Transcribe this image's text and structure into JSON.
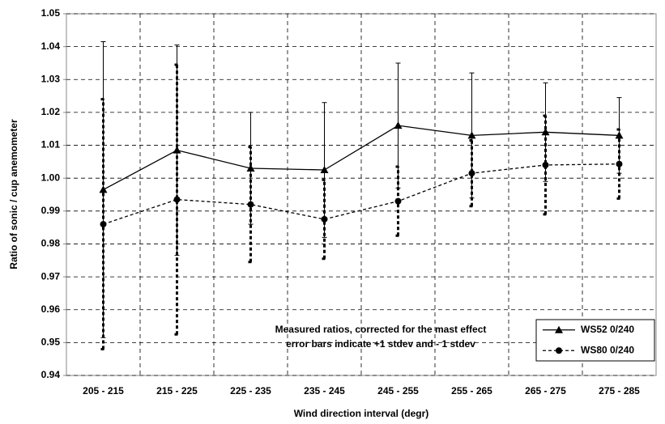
{
  "chart_data": {
    "type": "line",
    "y_label": "Ratio of sonic / cup anemometer",
    "x_label": "Wind direction interval (degr)",
    "annotations": [
      "Measured ratios, corrected for the mast effect",
      "error bars indicate +1 stdev and - 1 stdev"
    ],
    "categories": [
      "205 - 215",
      "215 - 225",
      "225 - 235",
      "235 - 245",
      "245 - 255",
      "255 - 265",
      "265 - 275",
      "275 - 285"
    ],
    "series": [
      {
        "name": "WS52 0/240",
        "color": "#000000",
        "dashed": false,
        "marker": "triangle",
        "values": [
          0.9965,
          1.0085,
          1.003,
          1.0025,
          1.016,
          1.013,
          1.014,
          1.013
        ],
        "errors": [
          0.045,
          0.032,
          0.017,
          0.0205,
          0.019,
          0.019,
          0.015,
          0.0115
        ]
      },
      {
        "name": "WS80 0/240",
        "color": "#000000",
        "dashed": true,
        "marker": "circle",
        "values": [
          0.986,
          0.9935,
          0.992,
          0.9875,
          0.993,
          1.0015,
          1.004,
          1.0043
        ],
        "errors": [
          0.038,
          0.041,
          0.0175,
          0.012,
          0.0105,
          0.01,
          0.015,
          0.0105
        ]
      }
    ],
    "ylim": [
      0.94,
      1.05
    ],
    "yticks": [
      0.94,
      0.95,
      0.96,
      0.97,
      0.98,
      0.99,
      {
        "value": 1,
        "label": "1.00"
      },
      1.01,
      1.02,
      1.03,
      1.04,
      1.05
    ],
    "grid": true,
    "legend": "lower right"
  }
}
